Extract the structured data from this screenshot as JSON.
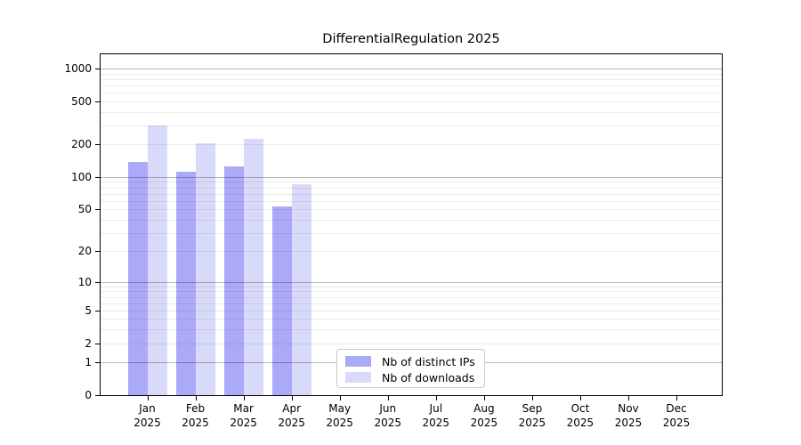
{
  "chart_data": {
    "type": "bar",
    "title": "DifferentialRegulation 2025",
    "year": "2025",
    "categories": [
      "Jan",
      "Feb",
      "Mar",
      "Apr",
      "May",
      "Jun",
      "Jul",
      "Aug",
      "Sep",
      "Oct",
      "Nov",
      "Dec"
    ],
    "series": [
      {
        "name": "Nb of distinct IPs",
        "color": "#aaaaf8",
        "values": [
          138,
          112,
          124,
          53,
          0,
          0,
          0,
          0,
          0,
          0,
          0,
          0
        ]
      },
      {
        "name": "Nb of downloads",
        "color": "#d9d9f9",
        "values": [
          300,
          203,
          226,
          85,
          0,
          0,
          0,
          0,
          0,
          0,
          0,
          0
        ]
      }
    ],
    "yticks": [
      0,
      1,
      2,
      5,
      10,
      20,
      50,
      100,
      200,
      500,
      1000
    ],
    "major_gridlines": [
      1,
      10,
      100,
      1000
    ],
    "minor_gridlines": [
      2,
      3,
      4,
      5,
      6,
      7,
      8,
      9,
      20,
      30,
      40,
      50,
      60,
      70,
      80,
      90,
      200,
      300,
      400,
      500,
      600,
      700,
      800,
      900
    ],
    "scale": "log1p",
    "ylim": [
      0,
      1350
    ],
    "xlabel": "",
    "ylabel": "",
    "grid": "horizontal",
    "legend": {
      "position": "lower center",
      "items": [
        "Nb of distinct IPs",
        "Nb of downloads"
      ]
    }
  }
}
